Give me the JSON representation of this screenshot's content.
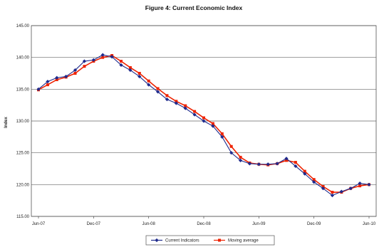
{
  "chart_data": {
    "type": "line",
    "title": "Figure 4: Current Economic Index",
    "ylabel": "Index",
    "xlabel": "",
    "ylim": [
      115,
      145
    ],
    "yticks": [
      "145.00",
      "140.00",
      "135.00",
      "130.00",
      "125.00",
      "120.00",
      "115.00"
    ],
    "ytick_values": [
      145,
      140,
      135,
      130,
      125,
      120,
      115
    ],
    "xticks": [
      "Jun-07",
      "Dec-07",
      "Jun-08",
      "Dec-08",
      "Jun-09",
      "Dec-09",
      "Jun-10"
    ],
    "xtick_months": [
      0,
      6,
      12,
      18,
      24,
      30,
      36
    ],
    "x_months": [
      0,
      1,
      2,
      3,
      4,
      5,
      6,
      7,
      8,
      9,
      10,
      11,
      12,
      13,
      14,
      15,
      16,
      17,
      18,
      19,
      20,
      21,
      22,
      23,
      24,
      25,
      26,
      27,
      28,
      29,
      30,
      31,
      32,
      33,
      34,
      35,
      36
    ],
    "grid": true,
    "legend_position": "bottom",
    "series": [
      {
        "name": "Current Indicators",
        "color": "#1f2a8c",
        "marker": "diamond",
        "values": [
          135.0,
          136.2,
          136.8,
          137.0,
          138.0,
          139.4,
          139.6,
          140.4,
          140.1,
          138.8,
          138.0,
          137.0,
          135.7,
          134.6,
          133.4,
          132.8,
          132.0,
          131.0,
          130.0,
          129.2,
          127.5,
          125.0,
          123.8,
          123.3,
          123.2,
          123.2,
          123.3,
          124.1,
          122.9,
          121.7,
          120.4,
          119.4,
          118.3,
          118.9,
          119.4,
          120.2,
          120.0
        ]
      },
      {
        "name": "Moving average",
        "color": "#ee2200",
        "marker": "square",
        "values": [
          134.9,
          135.7,
          136.5,
          136.9,
          137.5,
          138.6,
          139.4,
          140.0,
          140.3,
          139.4,
          138.4,
          137.5,
          136.3,
          135.1,
          134.0,
          133.1,
          132.4,
          131.5,
          130.5,
          129.6,
          128.0,
          126.0,
          124.3,
          123.4,
          123.2,
          123.1,
          123.3,
          123.8,
          123.5,
          122.1,
          120.8,
          119.7,
          118.8,
          118.8,
          119.4,
          119.8,
          120.0
        ]
      }
    ]
  }
}
